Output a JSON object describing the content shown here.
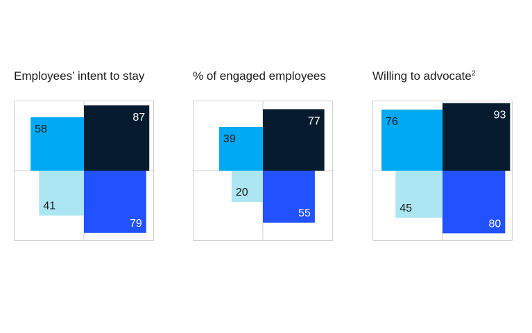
{
  "colors": {
    "dark_navy": "#061C2E",
    "bright_blue": "#2251FF",
    "sky_blue": "#00A9F4",
    "light_cyan": "#ACE6F2",
    "frame": "#cfcfcf",
    "text_dark": "#1a1a1a",
    "text_light": "#ffffff"
  },
  "chart_data": [
    {
      "type": "quadrant",
      "title": "Employees’ intent to stay",
      "footnote": "",
      "scale_max": 100,
      "values": {
        "top_left": 58,
        "top_right": 87,
        "bottom_left": 41,
        "bottom_right": 79
      },
      "labels": {
        "top_left": "58",
        "top_right": "87",
        "bottom_left": "41",
        "bottom_right": "79"
      }
    },
    {
      "type": "quadrant",
      "title": "% of engaged employees",
      "footnote": "",
      "scale_max": 100,
      "values": {
        "top_left": 39,
        "top_right": 77,
        "bottom_left": 20,
        "bottom_right": 55
      },
      "labels": {
        "top_left": "39",
        "top_right": "77",
        "bottom_left": "20",
        "bottom_right": "55"
      }
    },
    {
      "type": "quadrant",
      "title": "Willing to advocate",
      "footnote": "2",
      "scale_max": 100,
      "values": {
        "top_left": 76,
        "top_right": 93,
        "bottom_left": 45,
        "bottom_right": 80
      },
      "labels": {
        "top_left": "76",
        "top_right": "93",
        "bottom_left": "45",
        "bottom_right": "80"
      }
    }
  ]
}
